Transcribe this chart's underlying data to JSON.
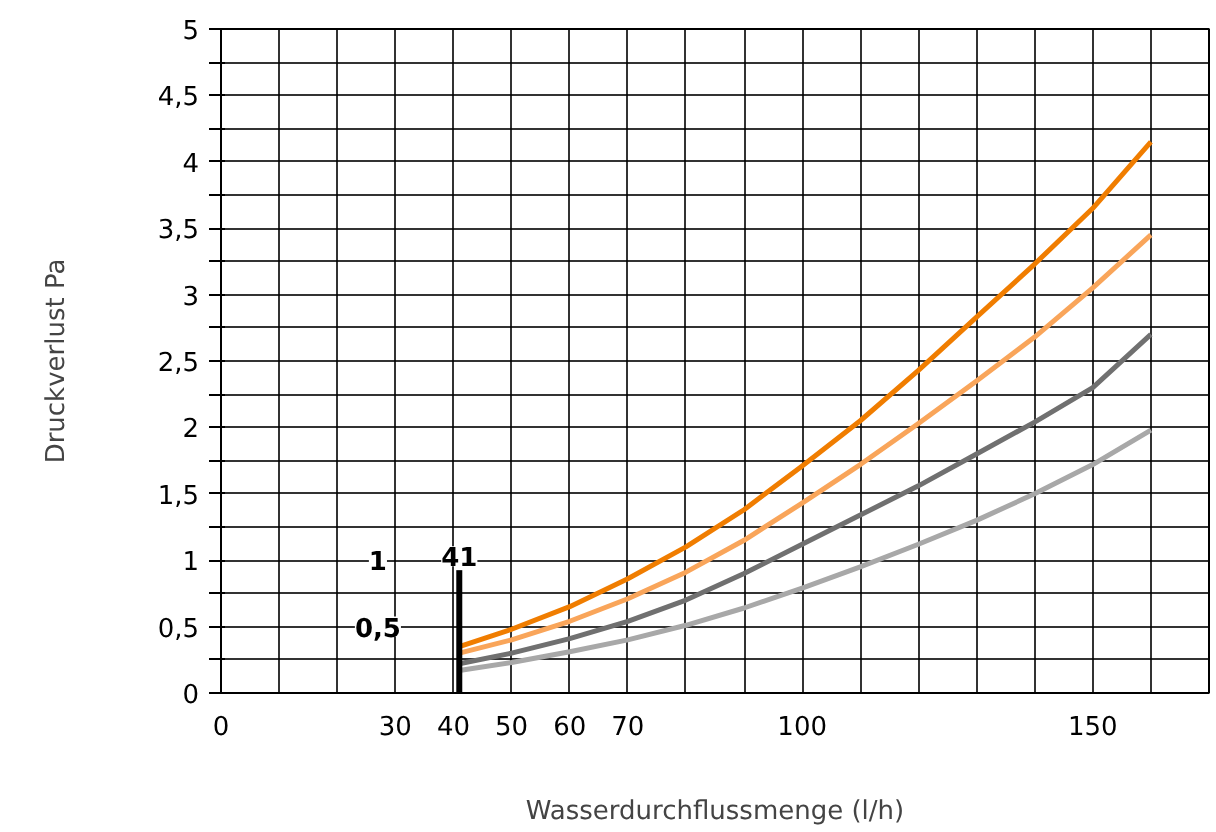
{
  "chart_data": {
    "type": "line",
    "xlabel": "Wasserdurchflussmenge (l/h)",
    "ylabel": "Druckverlust Pa",
    "x": [
      41,
      50,
      60,
      70,
      80,
      90,
      100,
      110,
      120,
      130,
      140,
      150,
      160
    ],
    "series": [
      {
        "color": "#f07d00",
        "values": [
          0.35,
          0.48,
          0.65,
          0.86,
          1.1,
          1.38,
          1.71,
          2.05,
          2.43,
          2.83,
          3.23,
          3.65,
          4.15
        ]
      },
      {
        "color": "#f9a55a",
        "values": [
          0.3,
          0.4,
          0.54,
          0.71,
          0.91,
          1.15,
          1.43,
          1.72,
          2.03,
          2.35,
          2.68,
          3.05,
          3.45
        ]
      },
      {
        "color": "#707070",
        "values": [
          0.22,
          0.3,
          0.41,
          0.54,
          0.7,
          0.9,
          1.12,
          1.34,
          1.56,
          1.8,
          2.04,
          2.3,
          2.7
        ]
      },
      {
        "color": "#a8a8a8",
        "values": [
          0.17,
          0.23,
          0.31,
          0.4,
          0.51,
          0.64,
          0.79,
          0.95,
          1.12,
          1.3,
          1.5,
          1.72,
          1.98
        ]
      }
    ],
    "xlim": [
      0,
      170
    ],
    "ylim": [
      0,
      5
    ],
    "xticks": [
      0,
      {
        "value": 10,
        "label": null
      },
      {
        "value": 20,
        "label": null
      },
      30,
      40,
      50,
      60,
      70,
      {
        "value": 80,
        "label": null
      },
      {
        "value": 90,
        "label": null
      },
      100,
      {
        "value": 110,
        "label": null
      },
      {
        "value": 120,
        "label": null
      },
      {
        "value": 130,
        "label": null
      },
      {
        "value": 140,
        "label": null
      },
      150,
      {
        "value": 160,
        "label": null
      }
    ],
    "yticks": [
      0,
      {
        "value": 0.25,
        "label": null
      },
      {
        "value": 0.5,
        "label": "0,5"
      },
      {
        "value": 0.75,
        "label": null
      },
      1,
      {
        "value": 1.25,
        "label": null
      },
      {
        "value": 1.5,
        "label": "1,5"
      },
      {
        "value": 1.75,
        "label": null
      },
      2,
      {
        "value": 2.25,
        "label": null
      },
      {
        "value": 2.5,
        "label": "2,5"
      },
      {
        "value": 2.75,
        "label": null
      },
      3,
      {
        "value": 3.25,
        "label": null
      },
      {
        "value": 3.5,
        "label": "3,5"
      },
      {
        "value": 3.75,
        "label": null
      },
      4,
      {
        "value": 4.25,
        "label": null
      },
      {
        "value": 4.5,
        "label": "4,5"
      },
      {
        "value": 4.75,
        "label": null
      },
      5
    ],
    "grid": true,
    "line_style": "solid",
    "marker": "none",
    "ref_lines": [
      {
        "axis": "x",
        "value": 41,
        "label": "41",
        "color": "#000000"
      }
    ],
    "annotations": [
      {
        "text": "1",
        "x": 27,
        "y": 1
      },
      {
        "text": "0,5",
        "x": 27,
        "y": 0.5
      }
    ]
  }
}
